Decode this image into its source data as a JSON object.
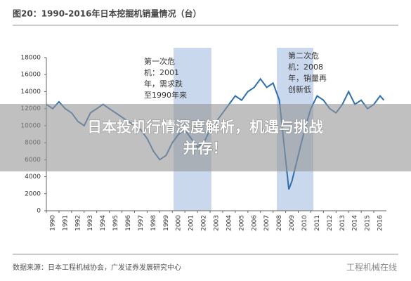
{
  "chart_data": {
    "type": "line",
    "title": "图20：1990-2016年日本挖掘机销量情况（台）",
    "x": [
      1990,
      1990.5,
      1991,
      1991.5,
      1992,
      1992.5,
      1993,
      1993.5,
      1994,
      1994.5,
      1995,
      1995.5,
      1996,
      1996.5,
      1997,
      1997.5,
      1998,
      1998.5,
      1999,
      1999.5,
      2000,
      2000.5,
      2001,
      2001.5,
      2002,
      2002.5,
      2003,
      2003.5,
      2004,
      2004.5,
      2005,
      2005.5,
      2006,
      2006.5,
      2007,
      2007.5,
      2008,
      2008.5,
      2009,
      2009.25,
      2009.5,
      2010,
      2010.5,
      2011,
      2011.5,
      2012,
      2012.5,
      2013,
      2013.5,
      2014,
      2014.5,
      2015,
      2015.5,
      2016,
      2016.5,
      2016.8
    ],
    "values": [
      12500,
      12000,
      12800,
      12000,
      11500,
      10500,
      10000,
      11500,
      12000,
      12500,
      12000,
      11500,
      11000,
      10500,
      10000,
      9500,
      8500,
      7000,
      6000,
      6500,
      8000,
      9000,
      9500,
      8500,
      7500,
      8000,
      9500,
      10500,
      11500,
      12500,
      13500,
      13000,
      14000,
      14500,
      15500,
      14500,
      15000,
      13000,
      6000,
      2500,
      3500,
      6500,
      9500,
      12000,
      13500,
      13000,
      12000,
      11500,
      12500,
      14000,
      12500,
      13000,
      12000,
      12500,
      13500,
      13000
    ],
    "color": "#2f6fae",
    "xlim": [
      1990,
      2017
    ],
    "xticks": [
      1990,
      1991,
      1992,
      1993,
      1994,
      1995,
      1996,
      1997,
      1998,
      1999,
      2000,
      2001,
      2002,
      2003,
      2004,
      2005,
      2006,
      2007,
      2008,
      2009,
      2010,
      2011,
      2012,
      2013,
      2014,
      2015,
      2016
    ],
    "ylim": [
      0,
      18000
    ],
    "yticks": [
      0,
      2000,
      4000,
      6000,
      8000,
      10000,
      12000,
      14000,
      16000,
      18000
    ],
    "shaded_regions": [
      [
        2000.1,
        2003.1
      ],
      [
        2008.3,
        2011.2
      ]
    ],
    "shade_color": "#c9d8ec",
    "annotations": [
      {
        "lines": [
          "第一次危",
          "机：2001",
          "年，需求跌",
          "至1990年来"
        ]
      },
      {
        "lines": [
          "第二次危",
          "机：2008",
          "年，销量再",
          "创新低"
        ]
      }
    ]
  },
  "overlay": {
    "lines": [
      "日本投机行情深度解析，机遇与挑战",
      "并存！"
    ]
  },
  "footer": {
    "source": "数据来源：日本工程机械协会，广发证券发展研究中心",
    "watermark": "工程机械在线"
  }
}
